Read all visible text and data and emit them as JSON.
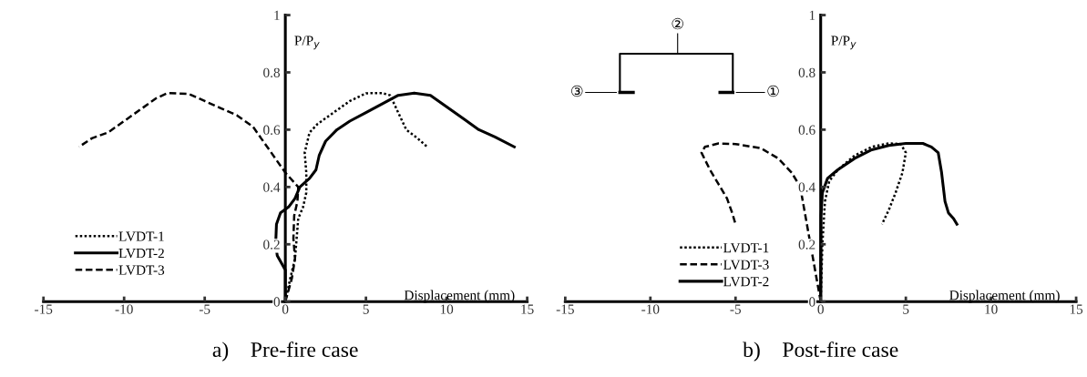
{
  "chart_data": [
    {
      "type": "line",
      "title": "a)    Pre-fire case",
      "xlabel": "Displacement (mm)",
      "ylabel": "P/P$_{y}$",
      "xlim": [
        -15,
        15
      ],
      "xticks": [
        -15,
        -10,
        -5,
        0,
        5,
        10,
        15
      ],
      "ylim": [
        0,
        1
      ],
      "yticks": [
        0,
        0.2,
        0.4,
        0.6,
        0.8,
        1
      ],
      "legend": "bottom left",
      "series": [
        {
          "name": "LVDT-1",
          "color": "#000000",
          "line_style": "dotted",
          "x": [
            0,
            0.3,
            0.6,
            0.7,
            0.8,
            1.1,
            1.3,
            1.3,
            1.2,
            1.5,
            2,
            3,
            4,
            5,
            6,
            6.5,
            7,
            7.5,
            8.2,
            8.8
          ],
          "values": [
            0,
            0.08,
            0.15,
            0.22,
            0.29,
            0.33,
            0.38,
            0.45,
            0.52,
            0.59,
            0.62,
            0.66,
            0.7,
            0.727,
            0.728,
            0.72,
            0.66,
            0.6,
            0.57,
            0.54
          ]
        },
        {
          "name": "LVDT-2",
          "color": "#000000",
          "line_style": "solid",
          "x": [
            0,
            0,
            -0.5,
            -0.6,
            -0.55,
            -0.3,
            0.2,
            0.6,
            0.9,
            1.5,
            1.9,
            2.1,
            2.5,
            3.2,
            4,
            5,
            6,
            7,
            8,
            9,
            10,
            11,
            12,
            13,
            14.2
          ],
          "values": [
            0,
            0.11,
            0.16,
            0.2,
            0.27,
            0.31,
            0.33,
            0.36,
            0.4,
            0.43,
            0.46,
            0.51,
            0.56,
            0.6,
            0.63,
            0.66,
            0.69,
            0.72,
            0.728,
            0.72,
            0.68,
            0.64,
            0.6,
            0.575,
            0.54
          ]
        },
        {
          "name": "LVDT-3",
          "color": "#000000",
          "line_style": "dashed",
          "x": [
            0,
            0.1,
            0.4,
            0.6,
            0.5,
            0.55,
            0.75,
            0.8,
            0,
            -1,
            -2,
            -3,
            -4,
            -5,
            -6,
            -7.3,
            -8,
            -9,
            -10,
            -11,
            -12,
            -12.8
          ],
          "values": [
            0,
            0.02,
            0.08,
            0.15,
            0.22,
            0.3,
            0.35,
            0.4,
            0.45,
            0.53,
            0.61,
            0.65,
            0.675,
            0.7,
            0.725,
            0.728,
            0.71,
            0.67,
            0.63,
            0.59,
            0.57,
            0.54
          ]
        }
      ]
    },
    {
      "type": "line",
      "title": "b)    Post-fire case",
      "xlabel": "Displacement (mm)",
      "ylabel": "P/P$_{y}$",
      "xlim": [
        -15,
        15
      ],
      "xticks": [
        -15,
        -10,
        -5,
        0,
        5,
        10,
        15
      ],
      "ylim": [
        0,
        1
      ],
      "yticks": [
        0,
        0.2,
        0.4,
        0.6,
        0.8,
        1
      ],
      "legend": "bottom left",
      "annotations": [
        "①",
        "②",
        "③"
      ],
      "series": [
        {
          "name": "LVDT-1",
          "color": "#000000",
          "line_style": "dotted",
          "x": [
            0,
            0.1,
            0.25,
            0.5,
            1,
            2,
            3,
            4,
            4.7,
            5,
            4.8,
            4.4,
            4,
            3.6
          ],
          "values": [
            0,
            0.2,
            0.35,
            0.42,
            0.46,
            0.51,
            0.54,
            0.552,
            0.55,
            0.52,
            0.45,
            0.38,
            0.32,
            0.27
          ]
        },
        {
          "name": "LVDT-3",
          "color": "#000000",
          "line_style": "dashed",
          "x": [
            0,
            -0.3,
            -0.6,
            -0.9,
            -1.2,
            -1.7,
            -2.5,
            -3.5,
            -5,
            -6,
            -6.8,
            -7,
            -6.5,
            -6,
            -5.5,
            -5.2,
            -5
          ],
          "values": [
            0,
            0.1,
            0.2,
            0.3,
            0.4,
            0.45,
            0.5,
            0.535,
            0.55,
            0.552,
            0.54,
            0.52,
            0.46,
            0.41,
            0.36,
            0.31,
            0.27
          ]
        },
        {
          "name": "LVDT-2",
          "color": "#000000",
          "line_style": "solid",
          "x": [
            0,
            0.02,
            0.1,
            0.4,
            1,
            2,
            3,
            4,
            5,
            6,
            6.5,
            6.9,
            7.1,
            7.2,
            7.3,
            7.5,
            7.8,
            8
          ],
          "values": [
            0,
            0.3,
            0.38,
            0.43,
            0.46,
            0.5,
            0.53,
            0.545,
            0.552,
            0.552,
            0.54,
            0.52,
            0.45,
            0.4,
            0.35,
            0.31,
            0.29,
            0.27
          ]
        }
      ]
    }
  ]
}
